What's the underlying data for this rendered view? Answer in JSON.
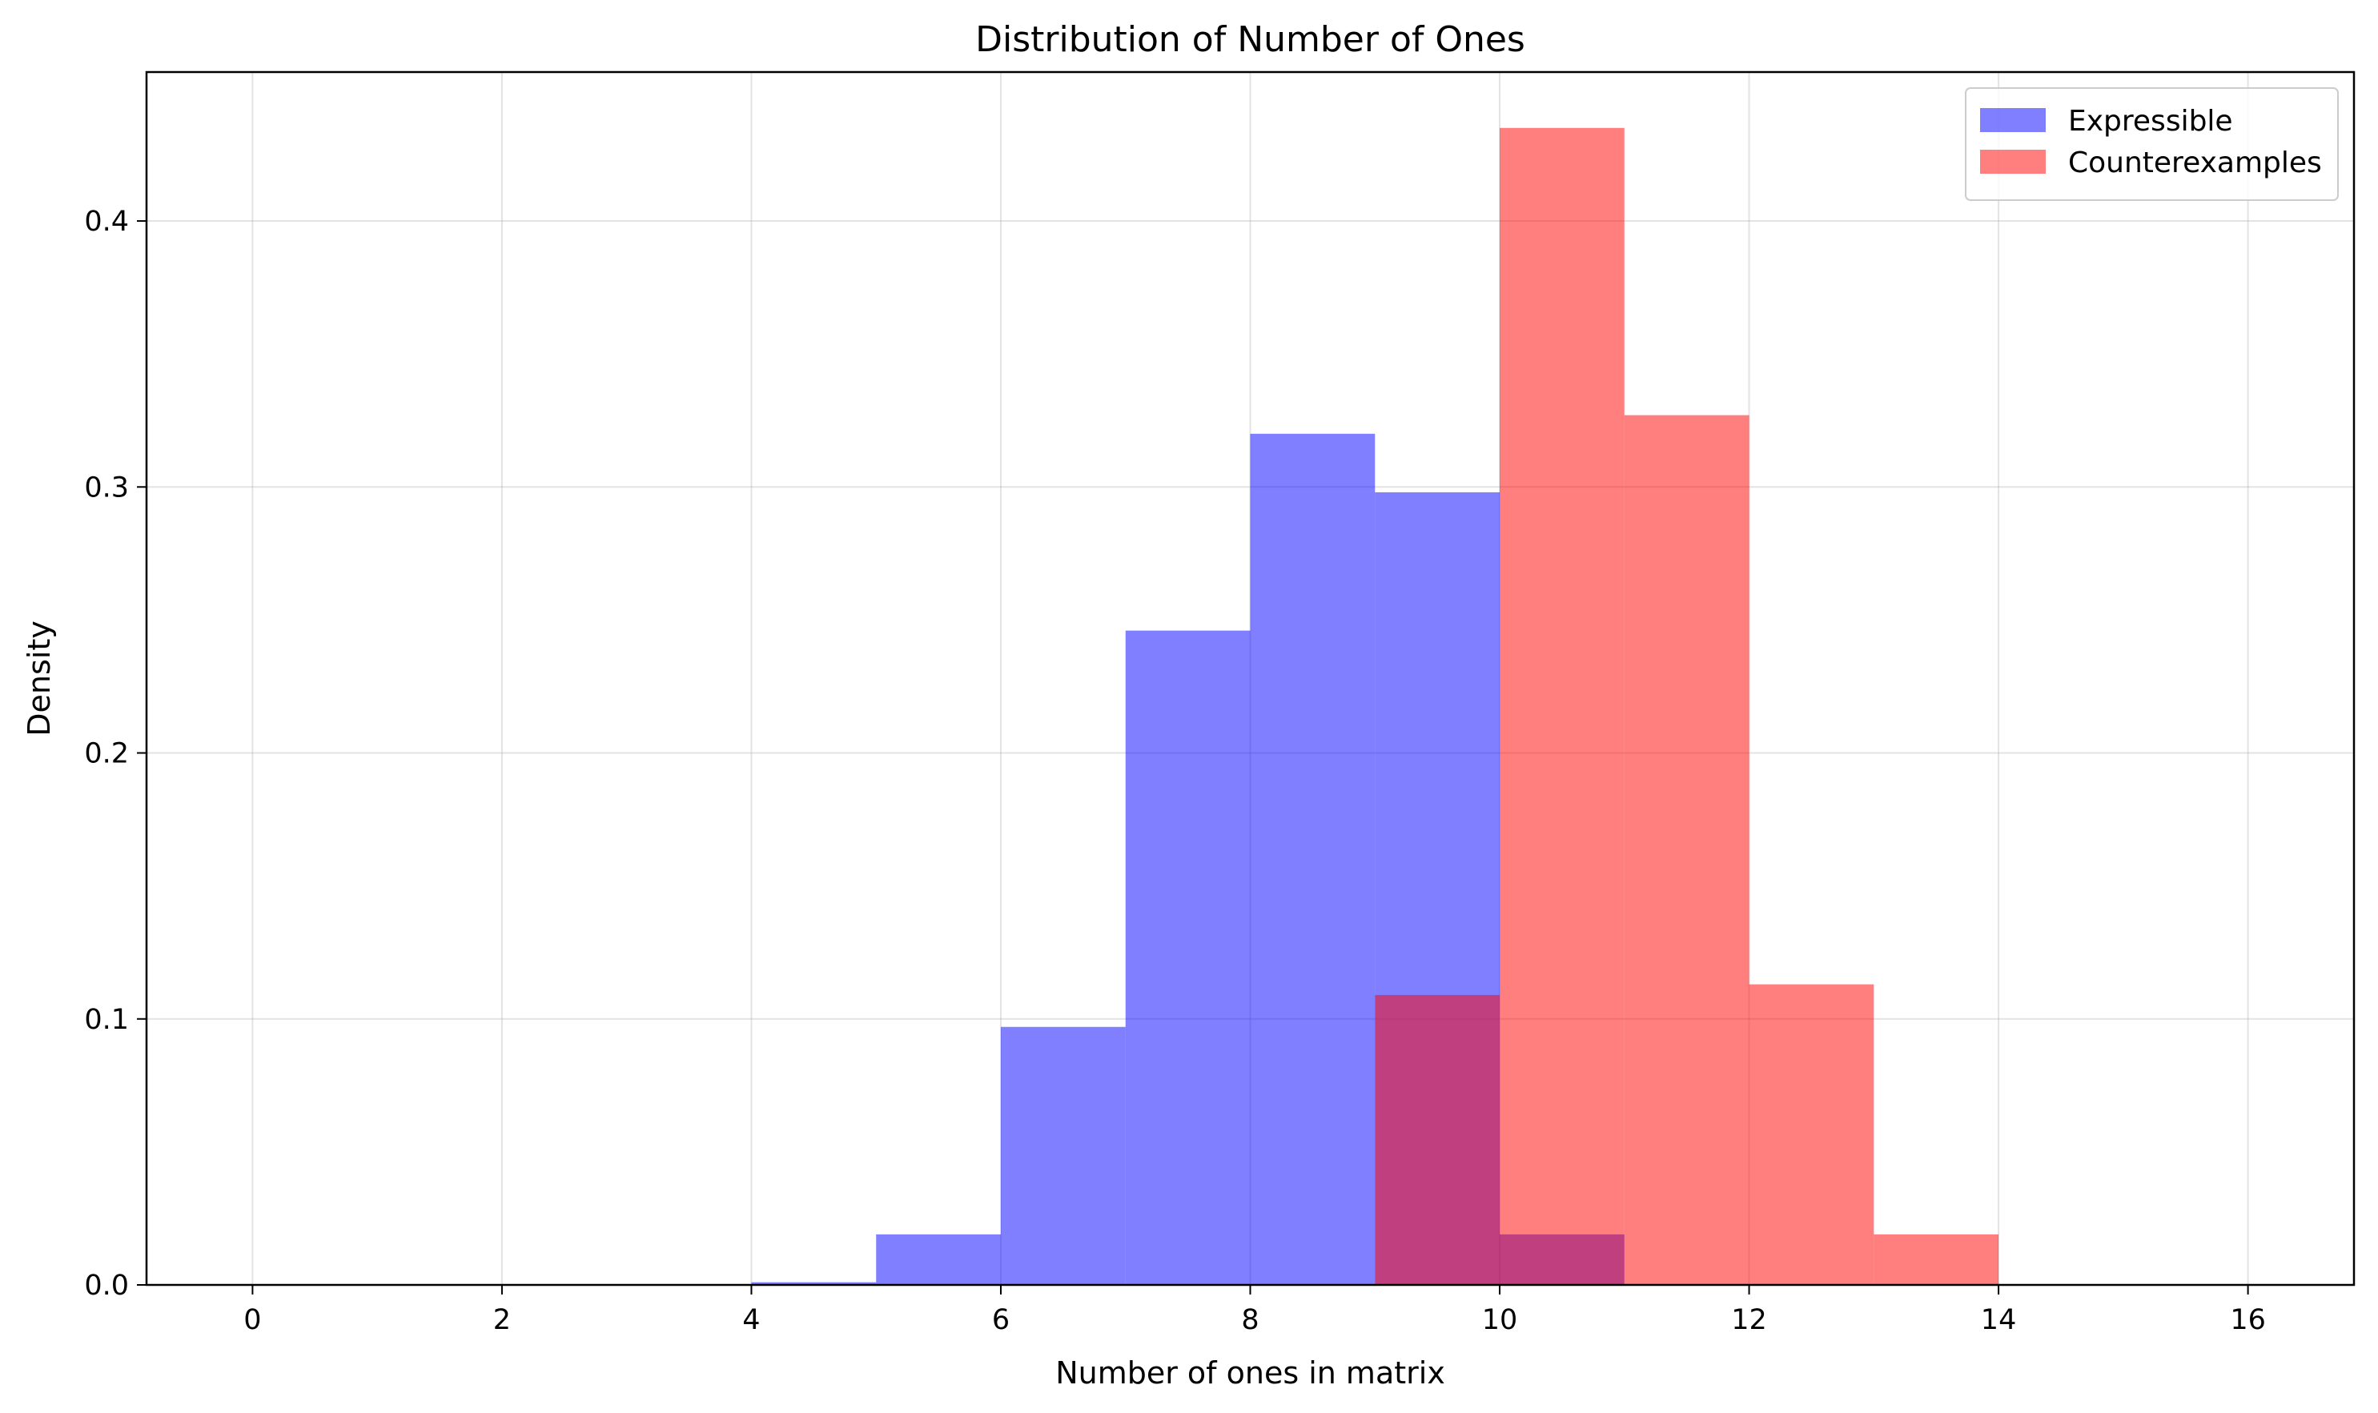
{
  "chart_data": {
    "type": "bar",
    "subtype": "overlapping-histogram",
    "title": "Distribution of Number of Ones",
    "xlabel": "Number of ones in matrix",
    "ylabel": "Density",
    "xlim": [
      -0.85,
      16.85
    ],
    "ylim": [
      0,
      0.456
    ],
    "xticks": [
      0,
      2,
      4,
      6,
      8,
      10,
      12,
      14,
      16
    ],
    "xtick_labels": [
      "0",
      "2",
      "4",
      "6",
      "8",
      "10",
      "12",
      "14",
      "16"
    ],
    "yticks": [
      0.0,
      0.1,
      0.2,
      0.3,
      0.4
    ],
    "ytick_labels": [
      "0.0",
      "0.1",
      "0.2",
      "0.3",
      "0.4"
    ],
    "grid": true,
    "legend_position": "top-right",
    "bin_edges": [
      0,
      1,
      2,
      3,
      4,
      5,
      6,
      7,
      8,
      9,
      10,
      11,
      12,
      13,
      14,
      15,
      16
    ],
    "series": [
      {
        "name": "Expressible",
        "color": "#0000ff",
        "alpha": 0.5,
        "values": [
          0,
          0,
          0,
          0,
          0.001,
          0.019,
          0.097,
          0.246,
          0.32,
          0.298,
          0.019,
          0,
          0,
          0,
          0,
          0
        ]
      },
      {
        "name": "Counterexamples",
        "color": "#ff0000",
        "alpha": 0.5,
        "values": [
          0,
          0,
          0,
          0,
          0,
          0,
          0,
          0,
          0,
          0.109,
          0.435,
          0.327,
          0.113,
          0.019,
          0,
          0
        ]
      }
    ]
  }
}
